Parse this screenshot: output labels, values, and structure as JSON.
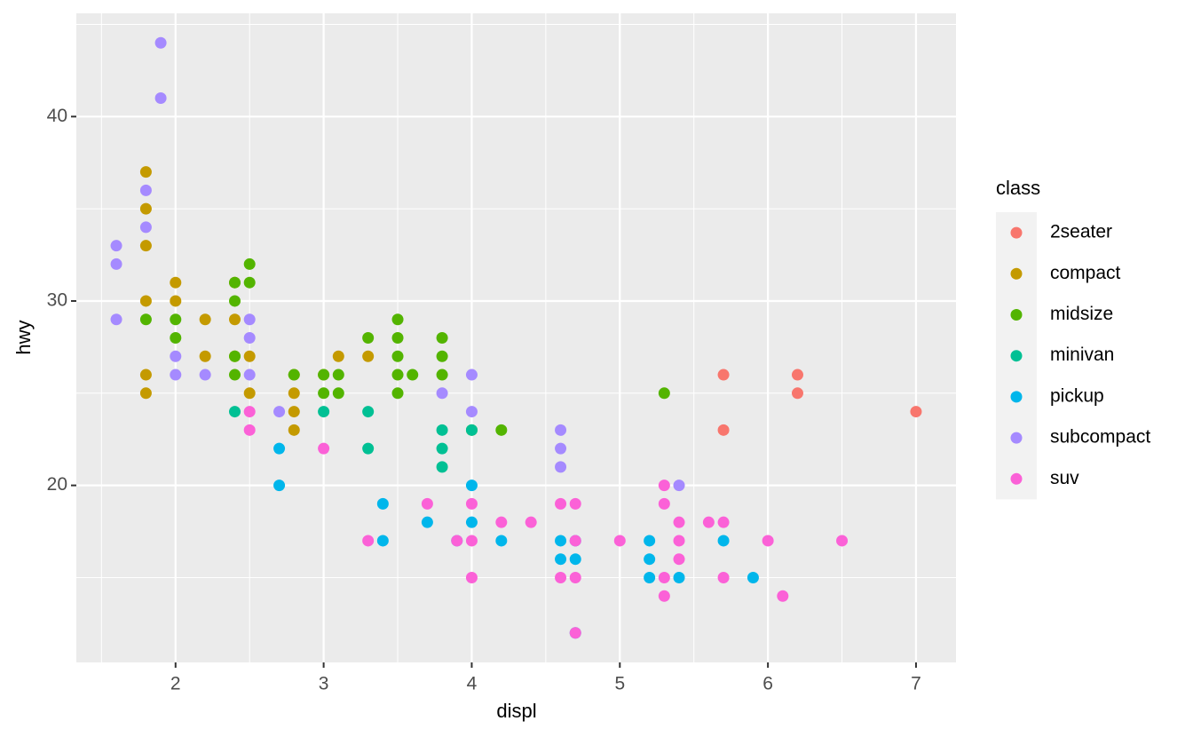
{
  "chart_data": {
    "type": "scatter",
    "x_label": "displ",
    "y_label": "hwy",
    "legend_title": "class",
    "xlim": [
      1.33,
      7.27
    ],
    "ylim": [
      10.4,
      45.6
    ],
    "xticks": [
      2,
      3,
      4,
      5,
      6,
      7
    ],
    "yticks": [
      20,
      30,
      40
    ],
    "x_minor_grid": [
      1.5,
      2.5,
      3.5,
      4.5,
      5.5,
      6.5
    ],
    "y_minor_grid": [
      15,
      25,
      35,
      45
    ],
    "grid": true,
    "legend_position": "right",
    "series": [
      {
        "name": "2seater",
        "color": "#F8766D",
        "x": [
          5.7,
          5.7,
          6.2,
          6.2,
          7
        ],
        "y": [
          26,
          23,
          26,
          25,
          24
        ]
      },
      {
        "name": "compact",
        "color": "#C49A00",
        "x": [
          1.8,
          1.8,
          1.8,
          1.8,
          1.8,
          1.8,
          2,
          2,
          2.2,
          2.2,
          2.4,
          2.4,
          2.4,
          2.5,
          2.5,
          2.8,
          2.8,
          2.8,
          2.8,
          3,
          3.1,
          3.3
        ],
        "y": [
          37,
          35,
          33,
          30,
          26,
          25,
          31,
          30,
          29,
          27,
          31,
          29,
          27,
          27,
          25,
          26,
          25,
          24,
          23,
          26,
          27,
          27
        ]
      },
      {
        "name": "midsize",
        "color": "#53B400",
        "x": [
          1.8,
          2,
          2,
          2.4,
          2.4,
          2.4,
          2.4,
          2.5,
          2.5,
          2.8,
          3,
          3,
          3.1,
          3.1,
          3.3,
          3.5,
          3.5,
          3.5,
          3.5,
          3.5,
          3.6,
          3.8,
          3.8,
          3.8,
          4,
          4.2,
          5.3
        ],
        "y": [
          29,
          29,
          28,
          31,
          30,
          27,
          26,
          32,
          31,
          26,
          26,
          25,
          26,
          25,
          28,
          29,
          28,
          27,
          26,
          25,
          26,
          28,
          27,
          26,
          23,
          23,
          25
        ]
      },
      {
        "name": "minivan",
        "color": "#00C094",
        "x": [
          2.4,
          3,
          3.3,
          3.3,
          3.8,
          3.8,
          3.8,
          4
        ],
        "y": [
          24,
          24,
          24,
          22,
          23,
          22,
          21,
          23
        ]
      },
      {
        "name": "pickup",
        "color": "#00B6EB",
        "x": [
          2.7,
          2.7,
          3.4,
          3.4,
          3.7,
          3.9,
          4,
          4,
          4.2,
          4.6,
          4.6,
          4.7,
          4.7,
          4.7,
          5.2,
          5.2,
          5.2,
          5.4,
          5.7,
          5.9
        ],
        "y": [
          22,
          20,
          19,
          17,
          18,
          17,
          20,
          18,
          17,
          17,
          16,
          17,
          16,
          12,
          17,
          16,
          15,
          15,
          17,
          15
        ]
      },
      {
        "name": "subcompact",
        "color": "#A58AFF",
        "x": [
          1.6,
          1.6,
          1.6,
          1.8,
          1.8,
          1.9,
          1.9,
          2,
          2,
          2.2,
          2.5,
          2.5,
          2.5,
          2.7,
          3.8,
          4,
          4,
          4.6,
          4.6,
          4.6,
          5.4
        ],
        "y": [
          33,
          32,
          29,
          36,
          34,
          44,
          41,
          27,
          26,
          26,
          29,
          28,
          26,
          24,
          25,
          26,
          24,
          23,
          22,
          21,
          20
        ]
      },
      {
        "name": "suv",
        "color": "#FB61D7",
        "x": [
          2.5,
          2.5,
          3,
          3.3,
          3.7,
          3.9,
          4,
          4,
          4,
          4.2,
          4.4,
          4.6,
          4.6,
          4.7,
          4.7,
          4.7,
          4.7,
          5,
          5.3,
          5.3,
          5.3,
          5.3,
          5.4,
          5.4,
          5.4,
          5.6,
          5.7,
          5.7,
          6,
          6.1,
          6.5
        ],
        "y": [
          24,
          23,
          22,
          17,
          19,
          17,
          19,
          17,
          15,
          18,
          18,
          19,
          15,
          19,
          17,
          15,
          12,
          17,
          20,
          19,
          15,
          14,
          18,
          17,
          16,
          18,
          18,
          15,
          17,
          14,
          17
        ]
      }
    ]
  }
}
